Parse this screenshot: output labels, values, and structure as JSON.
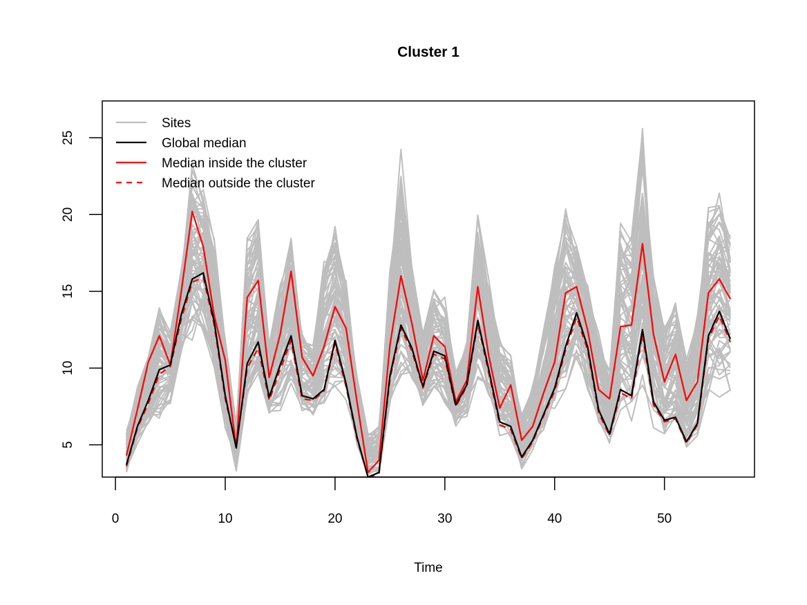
{
  "chart_data": {
    "type": "line",
    "title": "Cluster 1",
    "xlabel": "Time",
    "ylabel": "",
    "xlim": [
      -1.2,
      58.2
    ],
    "ylim": [
      2.9,
      27.4
    ],
    "xticks": [
      0,
      10,
      20,
      30,
      40,
      50
    ],
    "yticks": [
      5,
      10,
      15,
      20,
      25
    ],
    "legend_position": "top-left",
    "legend": [
      {
        "label": "Sites",
        "color": "#bebebe",
        "style": "solid"
      },
      {
        "label": "Global median",
        "color": "#000000",
        "style": "solid"
      },
      {
        "label": "Median inside the cluster",
        "color": "#ff0000",
        "style": "solid"
      },
      {
        "label": "Median outside the cluster",
        "color": "#ff0000",
        "style": "dashed"
      }
    ],
    "x": [
      1,
      2,
      3,
      4,
      5,
      6,
      7,
      8,
      9,
      10,
      11,
      12,
      13,
      14,
      15,
      16,
      17,
      18,
      19,
      20,
      21,
      22,
      23,
      24,
      25,
      26,
      27,
      28,
      29,
      30,
      31,
      32,
      33,
      34,
      35,
      36,
      37,
      38,
      39,
      40,
      41,
      42,
      43,
      44,
      45,
      46,
      47,
      48,
      49,
      50,
      51,
      52,
      53,
      54,
      55,
      56
    ],
    "series": [
      {
        "name": "Global median",
        "color": "#000000",
        "style": "solid",
        "values": [
          3.7,
          6.2,
          7.9,
          9.9,
          10.2,
          13.5,
          15.8,
          16.2,
          13.0,
          8.2,
          4.8,
          10.3,
          11.7,
          8.1,
          10.2,
          12.1,
          8.2,
          8.0,
          8.6,
          11.8,
          9.0,
          5.5,
          2.9,
          3.2,
          9.5,
          12.8,
          11.3,
          8.8,
          11.1,
          10.8,
          7.6,
          8.9,
          13.1,
          9.9,
          6.5,
          6.2,
          4.2,
          5.3,
          7.0,
          8.7,
          11.4,
          13.6,
          11.4,
          7.3,
          5.7,
          8.6,
          8.2,
          12.5,
          7.8,
          6.6,
          6.8,
          5.2,
          6.4,
          12.1,
          13.7,
          11.9
        ]
      },
      {
        "name": "Median inside the cluster",
        "color": "#ff0000",
        "style": "solid",
        "values": [
          4.3,
          7.3,
          10.4,
          12.1,
          10.2,
          15.0,
          20.2,
          17.9,
          13.4,
          10.5,
          4.8,
          14.6,
          15.7,
          9.4,
          12.2,
          16.3,
          10.7,
          9.5,
          11.4,
          14.0,
          12.6,
          7.8,
          3.2,
          4.0,
          11.5,
          16.0,
          12.9,
          9.2,
          12.1,
          11.4,
          7.8,
          9.2,
          15.3,
          10.8,
          7.4,
          8.9,
          5.3,
          6.2,
          8.4,
          10.4,
          14.9,
          15.3,
          12.5,
          8.6,
          8.0,
          12.7,
          12.8,
          18.1,
          12.2,
          9.1,
          10.9,
          7.9,
          9.1,
          14.9,
          15.8,
          14.5
        ]
      },
      {
        "name": "Median outside the cluster",
        "color": "#ff0000",
        "style": "dashed",
        "values": [
          3.6,
          6.1,
          7.7,
          9.6,
          10.1,
          13.2,
          15.6,
          15.9,
          12.8,
          8.0,
          4.9,
          10.0,
          11.3,
          7.9,
          9.9,
          11.8,
          8.0,
          7.9,
          8.5,
          11.6,
          8.8,
          5.4,
          2.9,
          3.1,
          9.3,
          12.6,
          11.1,
          8.7,
          10.9,
          10.6,
          7.5,
          8.8,
          12.9,
          9.7,
          6.3,
          6.0,
          4.1,
          5.2,
          6.9,
          8.5,
          11.2,
          13.3,
          11.2,
          7.1,
          5.6,
          8.4,
          8.0,
          12.2,
          7.6,
          6.5,
          6.7,
          5.1,
          6.3,
          11.9,
          13.4,
          11.7
        ]
      }
    ],
    "sites_count": 70,
    "sites_envelope": {
      "color": "#bebebe",
      "lower": [
        2.9,
        5.0,
        6.0,
        6.5,
        7.5,
        11.0,
        11.5,
        12.0,
        9.5,
        5.5,
        3.3,
        7.5,
        8.5,
        6.5,
        7.0,
        8.0,
        6.5,
        6.5,
        7.0,
        8.5,
        7.5,
        4.8,
        2.8,
        3.0,
        7.0,
        8.5,
        8.5,
        7.0,
        8.0,
        7.5,
        6.0,
        6.5,
        8.5,
        7.5,
        5.5,
        5.0,
        3.4,
        4.5,
        5.5,
        6.5,
        8.0,
        10.0,
        8.5,
        6.0,
        4.8,
        6.5,
        6.5,
        8.5,
        6.0,
        5.2,
        5.5,
        4.5,
        5.2,
        7.5,
        8.0,
        8.0
      ],
      "upper": [
        6.0,
        9.0,
        11.0,
        14.3,
        12.5,
        17.0,
        23.5,
        22.0,
        18.5,
        12.0,
        6.5,
        19.0,
        20.8,
        12.0,
        16.0,
        19.5,
        12.5,
        12.0,
        17.8,
        19.8,
        16.5,
        10.0,
        6.0,
        6.5,
        17.0,
        24.5,
        17.0,
        12.5,
        15.3,
        14.8,
        10.0,
        12.0,
        20.5,
        16.0,
        12.0,
        11.0,
        7.0,
        9.0,
        13.0,
        17.0,
        21.0,
        19.0,
        16.0,
        12.5,
        10.0,
        20.0,
        19.0,
        26.5,
        17.0,
        13.5,
        15.0,
        11.0,
        14.0,
        21.0,
        22.3,
        19.8
      ]
    }
  }
}
